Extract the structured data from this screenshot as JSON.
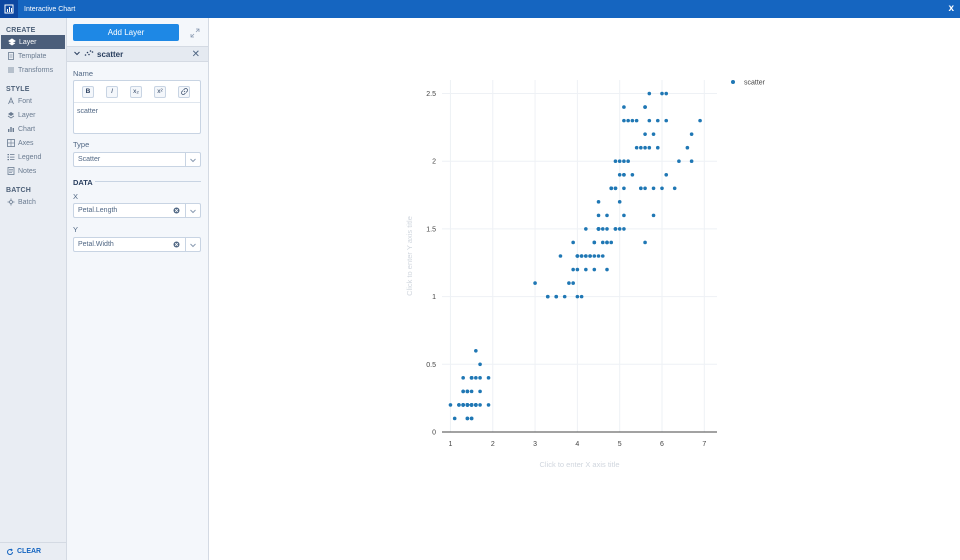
{
  "window": {
    "title": "Interactive Chart",
    "close_label": "x"
  },
  "sidebar": {
    "sections": [
      {
        "title": "CREATE",
        "items": [
          {
            "label": "Layer",
            "icon": "layers-icon",
            "active": true
          },
          {
            "label": "Template",
            "icon": "template-icon"
          },
          {
            "label": "Transforms",
            "icon": "transforms-icon"
          }
        ]
      },
      {
        "title": "STYLE",
        "items": [
          {
            "label": "Font",
            "icon": "font-icon"
          },
          {
            "label": "Layer",
            "icon": "layers-icon"
          },
          {
            "label": "Chart",
            "icon": "chart-icon"
          },
          {
            "label": "Axes",
            "icon": "axes-icon"
          },
          {
            "label": "Legend",
            "icon": "legend-icon"
          },
          {
            "label": "Notes",
            "icon": "notes-icon"
          }
        ]
      },
      {
        "title": "BATCH",
        "items": [
          {
            "label": "Batch",
            "icon": "batch-icon"
          }
        ]
      }
    ],
    "clear_label": "CLEAR"
  },
  "panel": {
    "add_layer_label": "Add Layer",
    "layer_name": "scatter",
    "name_label": "Name",
    "name_value": "scatter",
    "toolbar": {
      "bold": "B",
      "italic": "I",
      "subscript": "x₂",
      "superscript": "x²"
    },
    "type_label": "Type",
    "type_value": "Scatter",
    "data_title": "DATA",
    "x_label": "X",
    "x_value": "Petal.Length",
    "y_label": "Y",
    "y_value": "Petal.Width"
  },
  "chart_data": {
    "type": "scatter",
    "title": "",
    "xlabel": "Click to enter X axis title",
    "ylabel": "Click to enter Y axis title",
    "xlim": [
      0.8,
      7.3
    ],
    "ylim": [
      0,
      2.6
    ],
    "xticks": [
      1,
      2,
      3,
      4,
      5,
      6,
      7
    ],
    "yticks": [
      0,
      0.5,
      1,
      1.5,
      2,
      2.5
    ],
    "grid": true,
    "legend_position": "top-right",
    "marker_color": "#1f77b4",
    "series": [
      {
        "name": "scatter",
        "points": [
          [
            1.4,
            0.2
          ],
          [
            1.4,
            0.2
          ],
          [
            1.3,
            0.2
          ],
          [
            1.5,
            0.2
          ],
          [
            1.4,
            0.2
          ],
          [
            1.7,
            0.4
          ],
          [
            1.4,
            0.3
          ],
          [
            1.5,
            0.2
          ],
          [
            1.4,
            0.2
          ],
          [
            1.5,
            0.1
          ],
          [
            1.5,
            0.2
          ],
          [
            1.6,
            0.2
          ],
          [
            1.4,
            0.1
          ],
          [
            1.1,
            0.1
          ],
          [
            1.2,
            0.2
          ],
          [
            1.5,
            0.4
          ],
          [
            1.3,
            0.4
          ],
          [
            1.4,
            0.3
          ],
          [
            1.7,
            0.3
          ],
          [
            1.5,
            0.3
          ],
          [
            1.7,
            0.2
          ],
          [
            1.5,
            0.4
          ],
          [
            1.0,
            0.2
          ],
          [
            1.7,
            0.5
          ],
          [
            1.9,
            0.2
          ],
          [
            1.6,
            0.2
          ],
          [
            1.6,
            0.4
          ],
          [
            1.5,
            0.2
          ],
          [
            1.4,
            0.2
          ],
          [
            1.6,
            0.2
          ],
          [
            1.6,
            0.2
          ],
          [
            1.5,
            0.4
          ],
          [
            1.5,
            0.1
          ],
          [
            1.4,
            0.2
          ],
          [
            1.5,
            0.2
          ],
          [
            1.2,
            0.2
          ],
          [
            1.3,
            0.2
          ],
          [
            1.4,
            0.1
          ],
          [
            1.3,
            0.2
          ],
          [
            1.5,
            0.2
          ],
          [
            1.3,
            0.3
          ],
          [
            1.3,
            0.3
          ],
          [
            1.3,
            0.2
          ],
          [
            1.6,
            0.6
          ],
          [
            1.9,
            0.4
          ],
          [
            1.4,
            0.3
          ],
          [
            1.6,
            0.2
          ],
          [
            1.4,
            0.2
          ],
          [
            1.5,
            0.2
          ],
          [
            1.4,
            0.2
          ],
          [
            4.7,
            1.4
          ],
          [
            4.5,
            1.5
          ],
          [
            4.9,
            1.5
          ],
          [
            4.0,
            1.3
          ],
          [
            4.6,
            1.5
          ],
          [
            4.5,
            1.3
          ],
          [
            4.7,
            1.6
          ],
          [
            3.3,
            1.0
          ],
          [
            4.6,
            1.3
          ],
          [
            3.9,
            1.4
          ],
          [
            3.5,
            1.0
          ],
          [
            4.2,
            1.5
          ],
          [
            4.0,
            1.0
          ],
          [
            4.7,
            1.4
          ],
          [
            3.6,
            1.3
          ],
          [
            4.4,
            1.4
          ],
          [
            4.5,
            1.5
          ],
          [
            4.1,
            1.0
          ],
          [
            4.5,
            1.5
          ],
          [
            3.9,
            1.1
          ],
          [
            4.8,
            1.8
          ],
          [
            4.0,
            1.3
          ],
          [
            4.9,
            1.5
          ],
          [
            4.7,
            1.2
          ],
          [
            4.3,
            1.3
          ],
          [
            4.4,
            1.4
          ],
          [
            4.8,
            1.4
          ],
          [
            5.0,
            1.7
          ],
          [
            4.5,
            1.5
          ],
          [
            3.5,
            1.0
          ],
          [
            3.8,
            1.1
          ],
          [
            3.7,
            1.0
          ],
          [
            3.9,
            1.2
          ],
          [
            5.1,
            1.6
          ],
          [
            4.5,
            1.5
          ],
          [
            4.5,
            1.6
          ],
          [
            4.7,
            1.5
          ],
          [
            4.4,
            1.3
          ],
          [
            4.1,
            1.3
          ],
          [
            4.0,
            1.3
          ],
          [
            4.4,
            1.2
          ],
          [
            4.6,
            1.4
          ],
          [
            4.0,
            1.2
          ],
          [
            3.3,
            1.0
          ],
          [
            4.2,
            1.3
          ],
          [
            4.2,
            1.2
          ],
          [
            4.2,
            1.3
          ],
          [
            4.3,
            1.3
          ],
          [
            3.0,
            1.1
          ],
          [
            4.1,
            1.3
          ],
          [
            6.0,
            2.5
          ],
          [
            5.1,
            1.9
          ],
          [
            5.9,
            2.1
          ],
          [
            5.6,
            1.8
          ],
          [
            5.8,
            2.2
          ],
          [
            6.6,
            2.1
          ],
          [
            4.5,
            1.7
          ],
          [
            6.3,
            1.8
          ],
          [
            5.8,
            1.8
          ],
          [
            6.1,
            2.5
          ],
          [
            5.1,
            2.0
          ],
          [
            5.3,
            1.9
          ],
          [
            5.5,
            2.1
          ],
          [
            5.0,
            2.0
          ],
          [
            5.1,
            2.4
          ],
          [
            5.3,
            2.3
          ],
          [
            5.5,
            1.8
          ],
          [
            6.7,
            2.2
          ],
          [
            6.9,
            2.3
          ],
          [
            5.0,
            1.5
          ],
          [
            5.7,
            2.3
          ],
          [
            4.9,
            2.0
          ],
          [
            6.7,
            2.0
          ],
          [
            4.9,
            1.8
          ],
          [
            5.7,
            2.1
          ],
          [
            6.0,
            1.8
          ],
          [
            4.8,
            1.8
          ],
          [
            4.9,
            1.8
          ],
          [
            5.6,
            2.1
          ],
          [
            5.8,
            1.6
          ],
          [
            6.1,
            1.9
          ],
          [
            6.4,
            2.0
          ],
          [
            5.6,
            2.2
          ],
          [
            5.1,
            1.5
          ],
          [
            5.6,
            1.4
          ],
          [
            6.1,
            2.3
          ],
          [
            5.6,
            2.4
          ],
          [
            5.5,
            1.8
          ],
          [
            4.8,
            1.8
          ],
          [
            5.4,
            2.1
          ],
          [
            5.6,
            2.4
          ],
          [
            5.1,
            2.3
          ],
          [
            5.1,
            1.9
          ],
          [
            5.9,
            2.3
          ],
          [
            5.7,
            2.5
          ],
          [
            5.2,
            2.3
          ],
          [
            5.0,
            1.9
          ],
          [
            5.2,
            2.0
          ],
          [
            5.4,
            2.3
          ],
          [
            5.1,
            1.8
          ]
        ]
      }
    ]
  }
}
